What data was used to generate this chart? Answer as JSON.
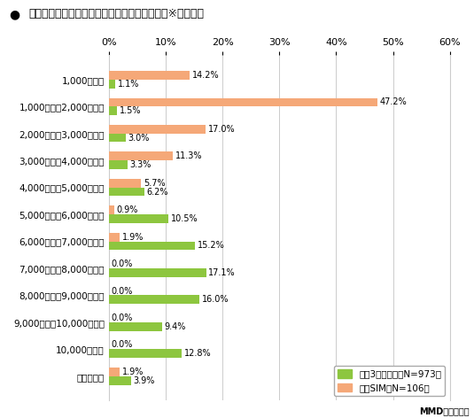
{
  "title_bullet": "●",
  "title_main": "現在支払っているスマートフォンの月額料金　※利用者別",
  "categories": [
    "1,000円未満",
    "1,000円以上2,000円未満",
    "2,000円以上3,000円未満",
    "3,000円以上4,000円未満",
    "4,000円以上5,000円未満",
    "5,000円以上6,000円未満",
    "6,000円以上7,000円未満",
    "7,000円以上8,000円未満",
    "8,000円以上9,000円未満",
    "9,000円以上10,000円未満",
    "10,000円以上",
    "わからない"
  ],
  "carrier_values": [
    1.1,
    1.5,
    3.0,
    3.3,
    6.2,
    10.5,
    15.2,
    17.1,
    16.0,
    9.4,
    12.8,
    3.9
  ],
  "carrier_labels": [
    "1.1%",
    "1.5%",
    "3.0%",
    "3.3%",
    "6.2%",
    "10.5%",
    "15.2%",
    "17.1%",
    "16.0%",
    "9.4%",
    "12.8%",
    "3.9%"
  ],
  "mvno_values": [
    14.2,
    47.2,
    17.0,
    11.3,
    5.7,
    0.9,
    1.9,
    0.0,
    0.0,
    0.0,
    0.0,
    1.9
  ],
  "mvno_labels": [
    "14.2%",
    "47.2%",
    "17.0%",
    "11.3%",
    "5.7%",
    "0.9%",
    "1.9%",
    "0.0%",
    "0.0%",
    "0.0%",
    "0.0%",
    "1.9%"
  ],
  "carrier_color": "#8DC63F",
  "mvno_color": "#F5A878",
  "carrier_legend": "大手3キャリア（N=973）",
  "mvno_legend": "格安SIM（N=106）",
  "xlim": [
    0,
    60
  ],
  "xticks": [
    0,
    10,
    20,
    30,
    40,
    50,
    60
  ],
  "footer": "MMD研究所調べ",
  "bg_color": "#ffffff",
  "grid_color": "#cccccc",
  "bar_height": 0.32,
  "fig_width": 5.35,
  "fig_height": 4.72,
  "dpi": 100
}
